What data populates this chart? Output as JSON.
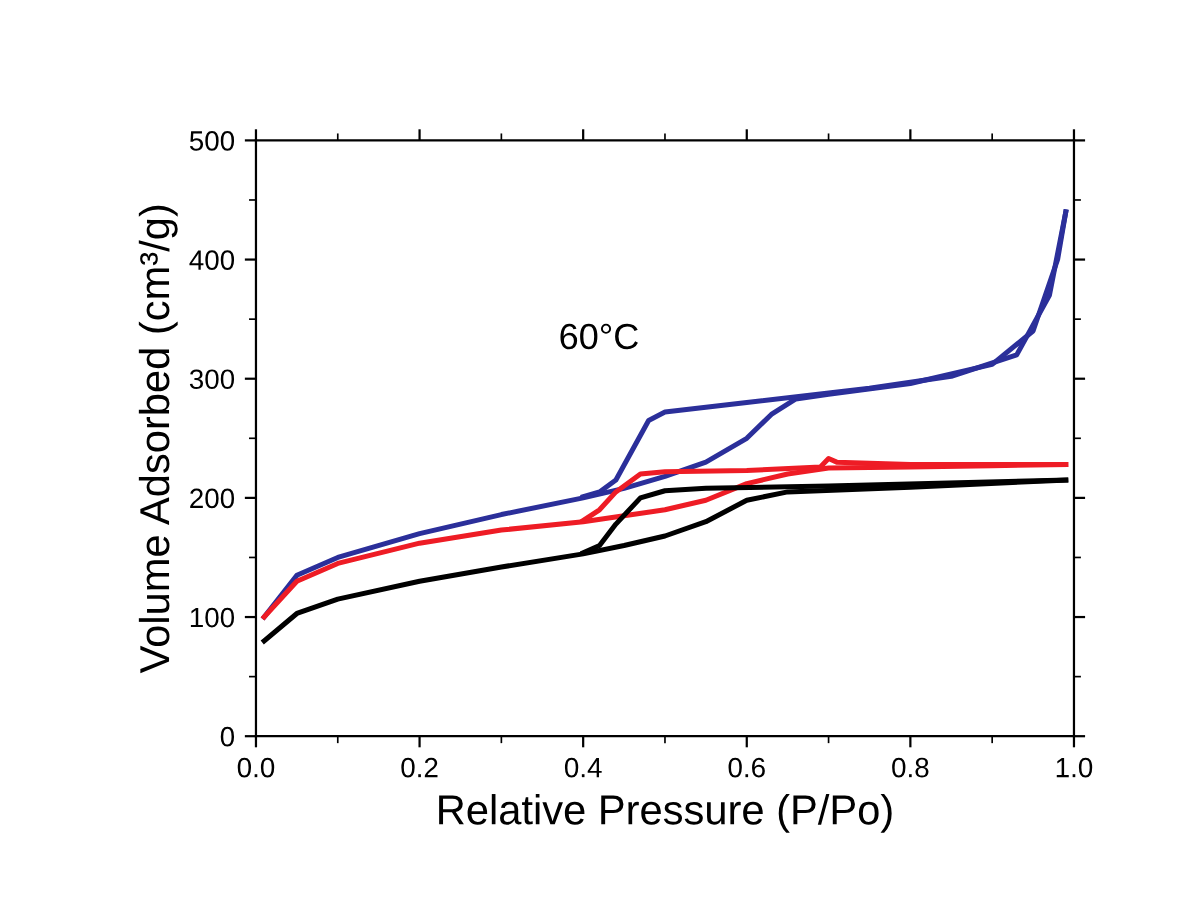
{
  "chart_data": {
    "type": "line",
    "xlabel": "Relative Pressure (P/Po)",
    "ylabel": "Volume Adsorbed (cm³/g)",
    "annotations": [
      "60°C"
    ],
    "xlim": [
      0.0,
      1.0
    ],
    "xticks": [
      {
        "value": 0.0,
        "label": "0.0"
      },
      0.2,
      0.4,
      0.6,
      0.8,
      {
        "value": 1.0,
        "label": "1.0"
      }
    ],
    "ylim": [
      0,
      500
    ],
    "yticks": [
      0,
      100,
      200,
      300,
      400,
      500
    ],
    "grid": false,
    "marker": "none",
    "line_style": "solid",
    "series": [
      {
        "color": "#2b2f9a",
        "x": [
          0.01,
          0.05,
          0.1,
          0.2,
          0.3,
          0.4,
          0.45,
          0.5,
          0.55,
          0.6,
          0.63,
          0.66,
          0.7,
          0.8,
          0.9,
          0.95,
          0.98,
          0.99
        ],
        "values": [
          100,
          135,
          150,
          170,
          186,
          200,
          208,
          218,
          230,
          250,
          270,
          283,
          287,
          296,
          312,
          340,
          400,
          440
        ]
      },
      {
        "color": "#2b2f9a",
        "x": [
          0.99,
          0.97,
          0.93,
          0.85,
          0.75,
          0.6,
          0.5,
          0.48,
          0.46,
          0.44,
          0.42,
          0.4
        ],
        "values": [
          440,
          370,
          320,
          302,
          292,
          280,
          272,
          265,
          240,
          215,
          205,
          201
        ]
      },
      {
        "color": "#ee1c25",
        "x": [
          0.01,
          0.05,
          0.1,
          0.2,
          0.3,
          0.4,
          0.45,
          0.5,
          0.55,
          0.6,
          0.65,
          0.7,
          0.8,
          0.9,
          0.99
        ],
        "values": [
          100,
          130,
          145,
          162,
          173,
          180,
          185,
          190,
          198,
          212,
          220,
          225,
          226,
          227,
          228
        ]
      },
      {
        "color": "#ee1c25",
        "x": [
          0.99,
          0.8,
          0.71,
          0.7,
          0.69,
          0.6,
          0.5,
          0.47,
          0.44,
          0.42,
          0.4
        ],
        "values": [
          228,
          228,
          230,
          233,
          226,
          223,
          222,
          220,
          205,
          190,
          181
        ]
      },
      {
        "color": "#000000",
        "x": [
          0.01,
          0.05,
          0.1,
          0.2,
          0.3,
          0.4,
          0.45,
          0.5,
          0.55,
          0.6,
          0.65,
          0.8,
          0.99
        ],
        "values": [
          80,
          103,
          115,
          130,
          142,
          153,
          160,
          168,
          180,
          198,
          205,
          209,
          215
        ]
      },
      {
        "color": "#000000",
        "x": [
          0.99,
          0.7,
          0.55,
          0.5,
          0.47,
          0.44,
          0.42,
          0.4
        ],
        "values": [
          215,
          210,
          208,
          206,
          200,
          178,
          160,
          154
        ]
      }
    ]
  }
}
